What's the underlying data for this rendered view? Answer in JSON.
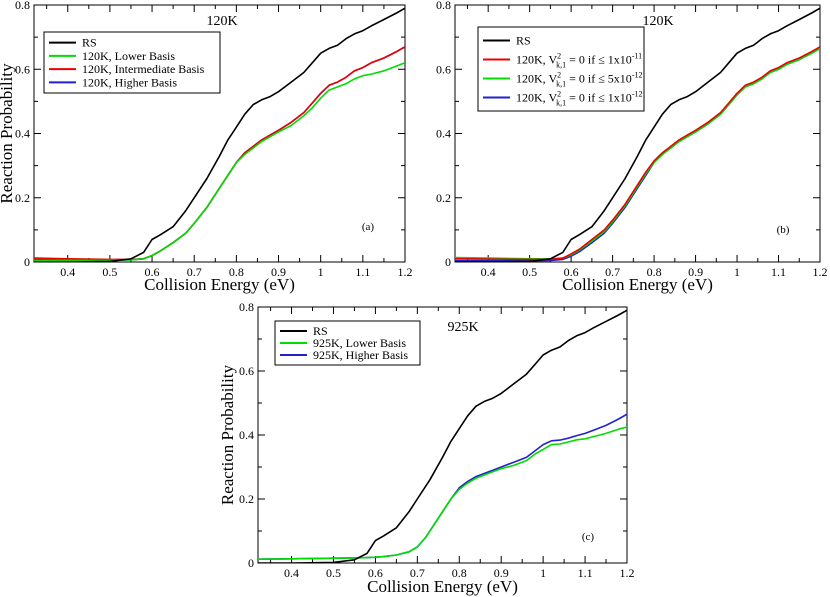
{
  "chart_data": [
    {
      "type": "line",
      "panel_tag": "(a)",
      "title": "120K",
      "xlabel": "Collision Energy (eV)",
      "ylabel": "Reaction Probability",
      "xlim": [
        0.32,
        1.2
      ],
      "ylim": [
        0,
        0.8
      ],
      "xticks": [
        "0.4",
        "0.5",
        "0.6",
        "0.7",
        "0.8",
        "0.9",
        "1",
        "1.1",
        "1.2"
      ],
      "yticks": [
        "0",
        "0.2",
        "0.4",
        "0.6",
        "0.8"
      ],
      "legend_position": "top-left",
      "series": [
        {
          "name": "RS",
          "color": "#000000",
          "x": [
            0.32,
            0.4,
            0.5,
            0.55,
            0.58,
            0.6,
            0.62,
            0.65,
            0.68,
            0.7,
            0.73,
            0.76,
            0.78,
            0.8,
            0.82,
            0.84,
            0.86,
            0.88,
            0.9,
            0.93,
            0.96,
            0.98,
            1.0,
            1.02,
            1.04,
            1.06,
            1.08,
            1.1,
            1.12,
            1.15,
            1.18,
            1.2
          ],
          "y": [
            0.0,
            0.0,
            0.002,
            0.01,
            0.03,
            0.07,
            0.085,
            0.11,
            0.16,
            0.2,
            0.26,
            0.33,
            0.38,
            0.42,
            0.46,
            0.49,
            0.505,
            0.515,
            0.53,
            0.56,
            0.59,
            0.62,
            0.65,
            0.665,
            0.675,
            0.695,
            0.71,
            0.72,
            0.735,
            0.755,
            0.775,
            0.79
          ]
        },
        {
          "name": "120K, Lower Basis",
          "color": "#00dd00",
          "x": [
            0.32,
            0.4,
            0.5,
            0.55,
            0.58,
            0.6,
            0.62,
            0.65,
            0.68,
            0.7,
            0.73,
            0.76,
            0.78,
            0.8,
            0.82,
            0.84,
            0.86,
            0.88,
            0.9,
            0.93,
            0.96,
            0.98,
            1.0,
            1.02,
            1.04,
            1.06,
            1.08,
            1.1,
            1.12,
            1.15,
            1.18,
            1.2
          ],
          "y": [
            0.005,
            0.005,
            0.005,
            0.007,
            0.01,
            0.02,
            0.035,
            0.06,
            0.09,
            0.12,
            0.17,
            0.23,
            0.27,
            0.31,
            0.335,
            0.355,
            0.375,
            0.39,
            0.405,
            0.425,
            0.455,
            0.48,
            0.51,
            0.535,
            0.545,
            0.555,
            0.57,
            0.58,
            0.585,
            0.595,
            0.61,
            0.62
          ]
        },
        {
          "name": "120K, Intermediate Basis",
          "color": "#ee0000",
          "x": [
            0.32,
            0.4,
            0.5,
            0.55,
            0.58,
            0.6,
            0.62,
            0.65,
            0.68,
            0.7,
            0.73,
            0.76,
            0.78,
            0.8,
            0.82,
            0.84,
            0.86,
            0.88,
            0.9,
            0.93,
            0.96,
            0.98,
            1.0,
            1.02,
            1.04,
            1.06,
            1.08,
            1.1,
            1.12,
            1.15,
            1.18,
            1.2
          ],
          "y": [
            0.012,
            0.01,
            0.008,
            0.008,
            0.01,
            0.02,
            0.035,
            0.06,
            0.09,
            0.12,
            0.17,
            0.23,
            0.27,
            0.31,
            0.34,
            0.36,
            0.38,
            0.395,
            0.41,
            0.435,
            0.465,
            0.495,
            0.525,
            0.55,
            0.56,
            0.575,
            0.595,
            0.605,
            0.62,
            0.635,
            0.655,
            0.67
          ]
        },
        {
          "name": "120K, Higher Basis",
          "color": "#2222cc",
          "x": [
            0.32,
            0.4,
            0.5,
            0.55,
            0.58,
            0.6,
            0.62,
            0.65,
            0.68,
            0.7,
            0.73,
            0.76,
            0.78,
            0.8,
            0.82,
            0.84,
            0.86,
            0.88,
            0.9,
            0.93,
            0.96,
            0.98,
            1.0,
            1.02,
            1.04,
            1.06,
            1.08,
            1.1,
            1.12,
            1.15,
            1.18,
            1.2
          ],
          "y": [
            0.008,
            0.007,
            0.006,
            0.007,
            0.01,
            0.02,
            0.035,
            0.06,
            0.09,
            0.12,
            0.17,
            0.23,
            0.27,
            0.31,
            0.34,
            0.36,
            0.38,
            0.395,
            0.41,
            0.435,
            0.465,
            0.495,
            0.525,
            0.55,
            0.56,
            0.575,
            0.595,
            0.605,
            0.62,
            0.635,
            0.655,
            0.67
          ]
        }
      ]
    },
    {
      "type": "line",
      "panel_tag": "(b)",
      "title": "120K",
      "xlabel": "Collision Energy (eV)",
      "ylabel": "",
      "xlim": [
        0.32,
        1.2
      ],
      "ylim": [
        0,
        0.8
      ],
      "xticks": [
        "0.4",
        "0.5",
        "0.6",
        "0.7",
        "0.8",
        "0.9",
        "1",
        "1.1",
        "1.2"
      ],
      "yticks": [
        "0",
        "0.2",
        "0.4",
        "0.6",
        "0.8"
      ],
      "legend_position": "top-left",
      "series": [
        {
          "name": "RS",
          "color": "#000000",
          "x": [
            0.32,
            0.4,
            0.5,
            0.55,
            0.58,
            0.6,
            0.62,
            0.65,
            0.68,
            0.7,
            0.73,
            0.76,
            0.78,
            0.8,
            0.82,
            0.84,
            0.86,
            0.88,
            0.9,
            0.93,
            0.96,
            0.98,
            1.0,
            1.02,
            1.04,
            1.06,
            1.08,
            1.1,
            1.12,
            1.15,
            1.18,
            1.2
          ],
          "y": [
            0.0,
            0.0,
            0.002,
            0.01,
            0.03,
            0.07,
            0.085,
            0.11,
            0.16,
            0.2,
            0.26,
            0.33,
            0.38,
            0.42,
            0.46,
            0.49,
            0.505,
            0.515,
            0.53,
            0.56,
            0.59,
            0.62,
            0.65,
            0.665,
            0.675,
            0.695,
            0.71,
            0.72,
            0.735,
            0.755,
            0.775,
            0.79
          ]
        },
        {
          "name": "120K, V",
          "legend_sup": "2",
          "legend_sub": "k,1",
          "legend_rest": " = 0 if ≤ 1x10",
          "legend_exp": "-11",
          "color": "#ee0000",
          "x": [
            0.32,
            0.4,
            0.5,
            0.55,
            0.58,
            0.6,
            0.62,
            0.65,
            0.68,
            0.7,
            0.73,
            0.76,
            0.78,
            0.8,
            0.82,
            0.84,
            0.86,
            0.88,
            0.9,
            0.93,
            0.96,
            0.98,
            1.0,
            1.02,
            1.04,
            1.06,
            1.08,
            1.1,
            1.12,
            1.15,
            1.18,
            1.2
          ],
          "y": [
            0.01,
            0.009,
            0.008,
            0.008,
            0.012,
            0.025,
            0.04,
            0.07,
            0.1,
            0.13,
            0.18,
            0.24,
            0.28,
            0.315,
            0.34,
            0.36,
            0.38,
            0.395,
            0.41,
            0.435,
            0.465,
            0.495,
            0.525,
            0.55,
            0.56,
            0.575,
            0.595,
            0.605,
            0.62,
            0.635,
            0.655,
            0.67
          ]
        },
        {
          "name": "120K, V",
          "legend_sup": "2",
          "legend_sub": "k,1",
          "legend_rest": " = 0 if ≤ 5x10",
          "legend_exp": "-12",
          "color": "#00dd00",
          "x": [
            0.32,
            0.4,
            0.5,
            0.55,
            0.58,
            0.6,
            0.62,
            0.65,
            0.68,
            0.7,
            0.73,
            0.76,
            0.78,
            0.8,
            0.82,
            0.84,
            0.86,
            0.88,
            0.9,
            0.93,
            0.96,
            0.98,
            1.0,
            1.02,
            1.04,
            1.06,
            1.08,
            1.1,
            1.12,
            1.15,
            1.18,
            1.2
          ],
          "y": [
            0.014,
            0.012,
            0.01,
            0.01,
            0.012,
            0.022,
            0.037,
            0.065,
            0.095,
            0.125,
            0.175,
            0.235,
            0.275,
            0.31,
            0.335,
            0.355,
            0.375,
            0.39,
            0.405,
            0.43,
            0.46,
            0.49,
            0.52,
            0.545,
            0.555,
            0.57,
            0.59,
            0.6,
            0.615,
            0.63,
            0.65,
            0.665
          ]
        },
        {
          "name": "120K, V",
          "legend_sup": "2",
          "legend_sub": "k,1",
          "legend_rest": " = 0 if ≤ 1x10",
          "legend_exp": "-12",
          "color": "#2222cc",
          "x": [
            0.32,
            0.4,
            0.5,
            0.55,
            0.58,
            0.6,
            0.62,
            0.65,
            0.68,
            0.7,
            0.73,
            0.76,
            0.78,
            0.8,
            0.82,
            0.84,
            0.86,
            0.88,
            0.9,
            0.93,
            0.96,
            0.98,
            1.0,
            1.02,
            1.04,
            1.06,
            1.08,
            1.1,
            1.12,
            1.15,
            1.18,
            1.2
          ],
          "y": [
            0.004,
            0.004,
            0.004,
            0.005,
            0.008,
            0.018,
            0.032,
            0.06,
            0.09,
            0.12,
            0.17,
            0.23,
            0.27,
            0.31,
            0.335,
            0.355,
            0.375,
            0.39,
            0.405,
            0.43,
            0.46,
            0.49,
            0.52,
            0.545,
            0.555,
            0.57,
            0.59,
            0.6,
            0.615,
            0.63,
            0.65,
            0.665
          ]
        }
      ]
    },
    {
      "type": "line",
      "panel_tag": "(c)",
      "title": "925K",
      "xlabel": "Collision Energy (eV)",
      "ylabel": "Reaction Probability",
      "xlim": [
        0.32,
        1.2
      ],
      "ylim": [
        0,
        0.8
      ],
      "xticks": [
        "0.4",
        "0.5",
        "0.6",
        "0.7",
        "0.8",
        "0.9",
        "1",
        "1.1",
        "1.2"
      ],
      "yticks": [
        "0",
        "0.2",
        "0.4",
        "0.6",
        "0.8"
      ],
      "legend_position": "top-left",
      "series": [
        {
          "name": "RS",
          "color": "#000000",
          "x": [
            0.32,
            0.4,
            0.5,
            0.55,
            0.58,
            0.6,
            0.62,
            0.65,
            0.68,
            0.7,
            0.73,
            0.76,
            0.78,
            0.8,
            0.82,
            0.84,
            0.86,
            0.88,
            0.9,
            0.93,
            0.96,
            0.98,
            1.0,
            1.02,
            1.04,
            1.06,
            1.08,
            1.1,
            1.12,
            1.15,
            1.18,
            1.2
          ],
          "y": [
            0.0,
            0.0,
            0.002,
            0.01,
            0.03,
            0.07,
            0.085,
            0.11,
            0.16,
            0.2,
            0.26,
            0.33,
            0.38,
            0.42,
            0.46,
            0.49,
            0.505,
            0.515,
            0.53,
            0.56,
            0.59,
            0.62,
            0.65,
            0.665,
            0.675,
            0.695,
            0.71,
            0.72,
            0.735,
            0.755,
            0.775,
            0.79
          ]
        },
        {
          "name": "925K, Lower Basis",
          "color": "#00dd00",
          "x": [
            0.32,
            0.4,
            0.5,
            0.55,
            0.58,
            0.6,
            0.62,
            0.65,
            0.68,
            0.7,
            0.72,
            0.74,
            0.76,
            0.78,
            0.8,
            0.82,
            0.84,
            0.86,
            0.88,
            0.9,
            0.93,
            0.96,
            0.98,
            1.0,
            1.02,
            1.04,
            1.06,
            1.08,
            1.1,
            1.12,
            1.15,
            1.18,
            1.2
          ],
          "y": [
            0.012,
            0.013,
            0.015,
            0.016,
            0.017,
            0.018,
            0.02,
            0.025,
            0.035,
            0.05,
            0.08,
            0.12,
            0.16,
            0.2,
            0.23,
            0.25,
            0.265,
            0.275,
            0.285,
            0.295,
            0.305,
            0.32,
            0.34,
            0.355,
            0.37,
            0.372,
            0.378,
            0.385,
            0.388,
            0.395,
            0.405,
            0.418,
            0.425
          ]
        },
        {
          "name": "925K, Higher Basis",
          "color": "#2222cc",
          "x": [
            0.32,
            0.4,
            0.5,
            0.55,
            0.58,
            0.6,
            0.62,
            0.65,
            0.68,
            0.7,
            0.72,
            0.74,
            0.76,
            0.78,
            0.8,
            0.82,
            0.84,
            0.86,
            0.88,
            0.9,
            0.93,
            0.96,
            0.98,
            1.0,
            1.02,
            1.04,
            1.06,
            1.08,
            1.1,
            1.12,
            1.15,
            1.18,
            1.2
          ],
          "y": [
            0.012,
            0.013,
            0.015,
            0.016,
            0.017,
            0.018,
            0.02,
            0.025,
            0.035,
            0.05,
            0.08,
            0.12,
            0.16,
            0.2,
            0.235,
            0.255,
            0.27,
            0.28,
            0.29,
            0.3,
            0.315,
            0.33,
            0.35,
            0.37,
            0.382,
            0.384,
            0.39,
            0.398,
            0.405,
            0.415,
            0.43,
            0.45,
            0.465
          ]
        }
      ]
    }
  ]
}
